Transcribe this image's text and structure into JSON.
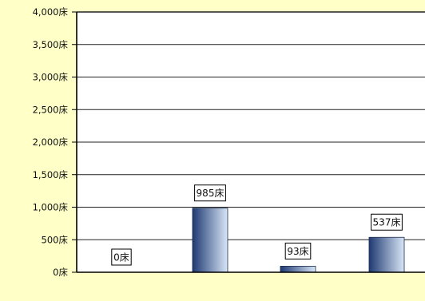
{
  "colors": {
    "page_background": "#ffffc8",
    "plot_background": "#ffffff",
    "gridline": "#222222",
    "axis": "#000000",
    "bar_dark": "#1f3a73",
    "bar_light": "#d9e6f7"
  },
  "chart_data": {
    "type": "bar",
    "title": "",
    "xlabel": "",
    "ylabel": "",
    "unit": "床",
    "ylim": [
      0,
      4000
    ],
    "y_ticks": [
      0,
      500,
      1000,
      1500,
      2000,
      2500,
      3000,
      3500,
      4000
    ],
    "y_tick_labels": [
      "0床",
      "500床",
      "1,000床",
      "1,500床",
      "2,000床",
      "2,500床",
      "3,000床",
      "3,500床",
      "4,000床"
    ],
    "categories": [
      "",
      "",
      "",
      ""
    ],
    "values": [
      0,
      985,
      93,
      537
    ],
    "data_labels": [
      "0床",
      "985床",
      "93床",
      "537床"
    ],
    "grid": true,
    "legend": "none"
  }
}
